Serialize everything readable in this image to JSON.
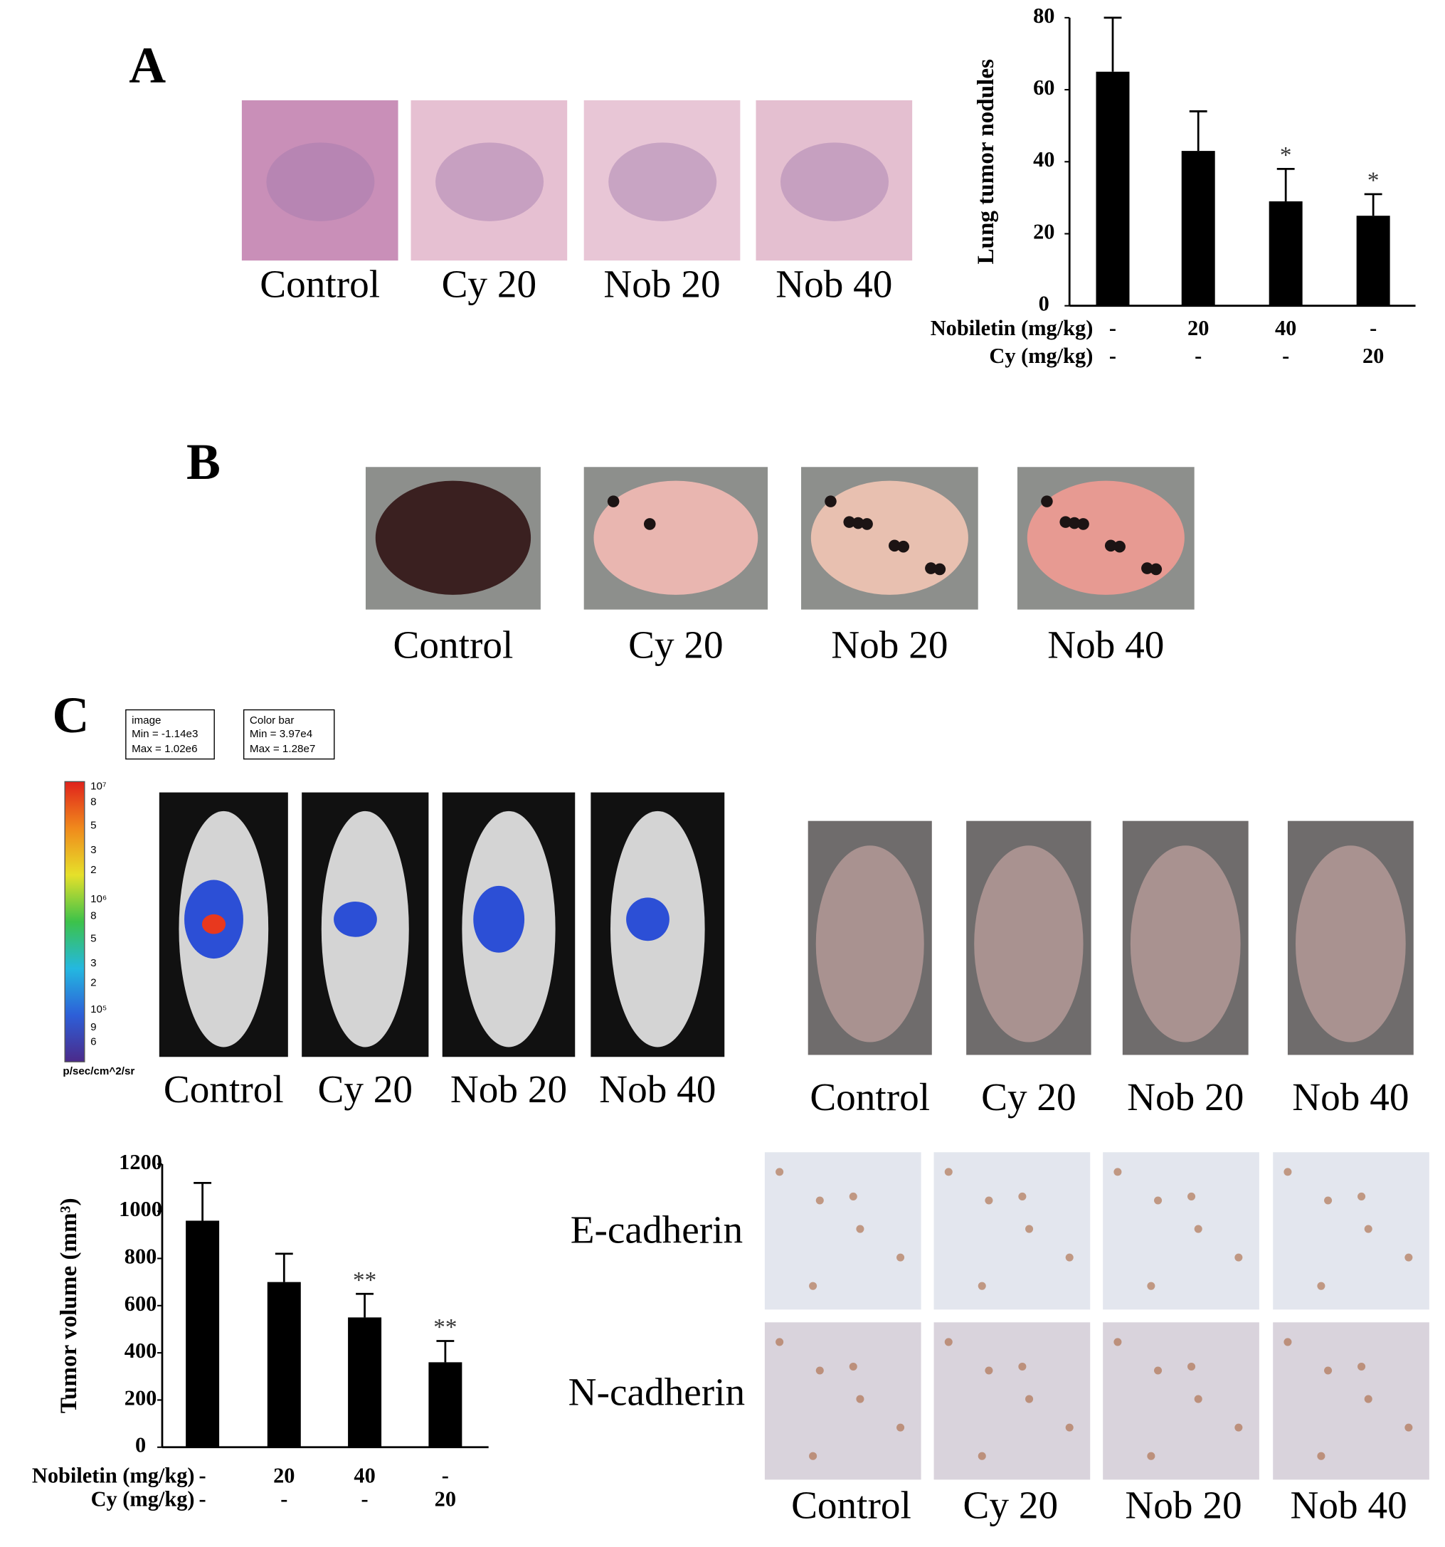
{
  "panels": {
    "A": {
      "label": "A",
      "captions": [
        "Control",
        "Cy 20",
        "Nob 20",
        "Nob 40"
      ]
    },
    "B": {
      "label": "B",
      "captions": [
        "Control",
        "Cy 20",
        "Nob 20",
        "Nob 40"
      ]
    },
    "C": {
      "label": "C",
      "image_box": {
        "title": "image",
        "lines": [
          "Min = -1.14e3",
          "Max = 1.02e6"
        ]
      },
      "colorbar_box": {
        "title": "Color bar",
        "lines": [
          "Min = 3.97e4",
          "Max = 1.28e7"
        ]
      },
      "colorbar_labels": [
        "10⁷",
        "8",
        "5",
        "3",
        "2",
        "10⁶",
        "8",
        "5",
        "3",
        "2",
        "10⁵",
        "9",
        "6"
      ],
      "colorbar_unit": "p/sec/cm^2/sr",
      "luminescence_captions": [
        "Control",
        "Cy 20",
        "Nob 20",
        "Nob 40"
      ],
      "photo_captions": [
        "Control",
        "Cy 20",
        "Nob 20",
        "Nob 40"
      ],
      "ihc_rows": [
        "E-cadherin",
        "N-cadherin"
      ],
      "ihc_captions": [
        "Control",
        "Cy 20",
        "Nob 20",
        "Nob 40"
      ]
    }
  },
  "chart_data": [
    {
      "type": "bar",
      "ylabel": "Lung tumor nodules",
      "values": [
        65,
        43,
        29,
        25
      ],
      "errors": [
        15,
        11,
        9,
        6
      ],
      "significance": [
        null,
        null,
        "*",
        "*"
      ],
      "color": "#000000",
      "ylim": [
        0,
        80
      ],
      "yticks": [
        0,
        20,
        40,
        60,
        80
      ],
      "rows": [
        {
          "name": "Nobiletin (mg/kg)",
          "labels": [
            "-",
            "20",
            "40",
            "-"
          ]
        },
        {
          "name": "Cy (mg/kg)",
          "labels": [
            "-",
            "-",
            "-",
            "20"
          ]
        }
      ]
    },
    {
      "type": "bar",
      "ylabel": "Tumor volume (mm³)",
      "values": [
        960,
        700,
        550,
        360
      ],
      "errors": [
        160,
        120,
        100,
        90
      ],
      "significance": [
        null,
        null,
        "**",
        "**"
      ],
      "color": "#000000",
      "ylim": [
        0,
        1200
      ],
      "yticks": [
        0,
        200,
        400,
        600,
        800,
        1000,
        1200
      ],
      "rows": [
        {
          "name": "Nobiletin (mg/kg)",
          "labels": [
            "-",
            "20",
            "40",
            "-"
          ]
        },
        {
          "name": "Cy (mg/kg)",
          "labels": [
            "-",
            "-",
            "-",
            "20"
          ]
        }
      ]
    }
  ]
}
